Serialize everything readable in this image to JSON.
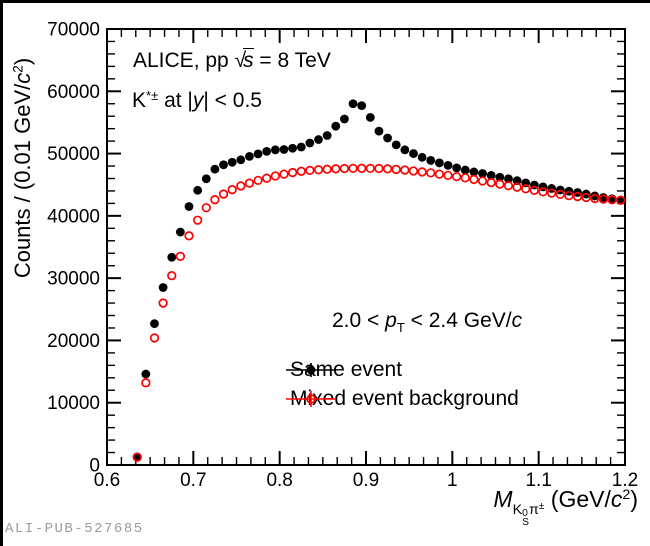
{
  "watermark": "ALI-PUB-527685",
  "colors": {
    "same_event": "#000000",
    "mixed_event": "#ff0000",
    "axis": "#000000",
    "watermark_gray": "#9b9b9b"
  },
  "texts": {
    "alice_prefix": "ALICE, pp ",
    "sqrt_sign": "√",
    "sqrt_arg": "s",
    "alice_suffix": " = 8 TeV",
    "kstar_k": "K",
    "kstar_sup": "*±",
    "kstar_mid": " at |",
    "kstar_y": "y",
    "kstar_suffix": "| < 0.5",
    "pt_prefix": "2.0 < ",
    "pt_p": "p",
    "pt_sub": "T",
    "pt_mid": " < 2.4 GeV/",
    "pt_c": "c"
  },
  "ylabel_parts": {
    "prefix": "Counts / (0.01 GeV/",
    "c": "c",
    "exp": "2",
    "close": ")"
  },
  "xlabel_parts": {
    "M": "M",
    "K": "K",
    "k_sup": "0",
    "k_sub": "S",
    "pi": "π",
    "pi_sup": "±",
    "rest": " (GeV/",
    "c": "c",
    "exp": "2",
    "close": ")"
  },
  "chart_data": {
    "type": "scatter",
    "title": "ALICE, pp sqrt(s) = 8 TeV, K*(892)± at |y| < 0.5, 2.0 < pT < 2.4 GeV/c",
    "xlabel": "M(K0S pi±) (GeV/c2)",
    "ylabel": "Counts / (0.01 GeV/c2)",
    "xlim": [
      0.6,
      1.2
    ],
    "ylim": [
      0,
      70000
    ],
    "grid": false,
    "legend_position": "bottom-right-inside",
    "x_tick_values": [
      0.6,
      0.7,
      0.8,
      0.9,
      1.0,
      1.1,
      1.2
    ],
    "x_tick_labels": [
      "0.6",
      "0.7",
      "0.8",
      "0.9",
      "1",
      "1.1",
      "1.2"
    ],
    "x_minor_divisions": 6,
    "y_tick_values": [
      0,
      10000,
      20000,
      30000,
      40000,
      50000,
      60000,
      70000
    ],
    "y_tick_labels": [
      "0",
      "10000",
      "20000",
      "30000",
      "40000",
      "50000",
      "60000",
      "70000"
    ],
    "y_minor_step": 2000,
    "x": [
      0.635,
      0.645,
      0.655,
      0.665,
      0.675,
      0.685,
      0.695,
      0.705,
      0.715,
      0.725,
      0.735,
      0.745,
      0.755,
      0.765,
      0.775,
      0.785,
      0.795,
      0.805,
      0.815,
      0.825,
      0.835,
      0.845,
      0.855,
      0.865,
      0.875,
      0.885,
      0.895,
      0.905,
      0.915,
      0.925,
      0.935,
      0.945,
      0.955,
      0.965,
      0.975,
      0.985,
      0.995,
      1.005,
      1.015,
      1.025,
      1.035,
      1.045,
      1.055,
      1.065,
      1.075,
      1.085,
      1.095,
      1.105,
      1.115,
      1.125,
      1.135,
      1.145,
      1.155,
      1.165,
      1.175,
      1.185,
      1.195
    ],
    "series": [
      {
        "name": "Same event",
        "marker": "filled-circle",
        "color": "#000000",
        "values": [
          1300,
          14600,
          22700,
          28500,
          33350,
          37400,
          41500,
          44100,
          45950,
          47500,
          48200,
          48600,
          49000,
          49550,
          49950,
          50350,
          50600,
          50650,
          50850,
          51050,
          51700,
          52250,
          52900,
          54400,
          55550,
          58000,
          57700,
          55800,
          53600,
          52500,
          51400,
          50600,
          50000,
          49400,
          48900,
          48500,
          48100,
          47700,
          47350,
          47050,
          46800,
          46500,
          46200,
          45950,
          45650,
          45300,
          44950,
          44650,
          44400,
          44150,
          43950,
          43750,
          43500,
          43200,
          42950,
          42750,
          42550
        ]
      },
      {
        "name": "Mixed event background",
        "marker": "open-circle",
        "color": "#ff0000",
        "values": [
          1250,
          13200,
          20400,
          26000,
          30400,
          33500,
          36800,
          39300,
          41300,
          42600,
          43500,
          44200,
          44800,
          45250,
          45700,
          46050,
          46400,
          46700,
          46950,
          47150,
          47300,
          47400,
          47480,
          47550,
          47600,
          47620,
          47630,
          47620,
          47600,
          47550,
          47450,
          47350,
          47200,
          47050,
          46900,
          46700,
          46500,
          46300,
          46100,
          45850,
          45600,
          45350,
          45100,
          44850,
          44600,
          44350,
          44100,
          43850,
          43650,
          43450,
          43250,
          43100,
          42950,
          42800,
          42700,
          42600,
          42500
        ]
      }
    ]
  }
}
